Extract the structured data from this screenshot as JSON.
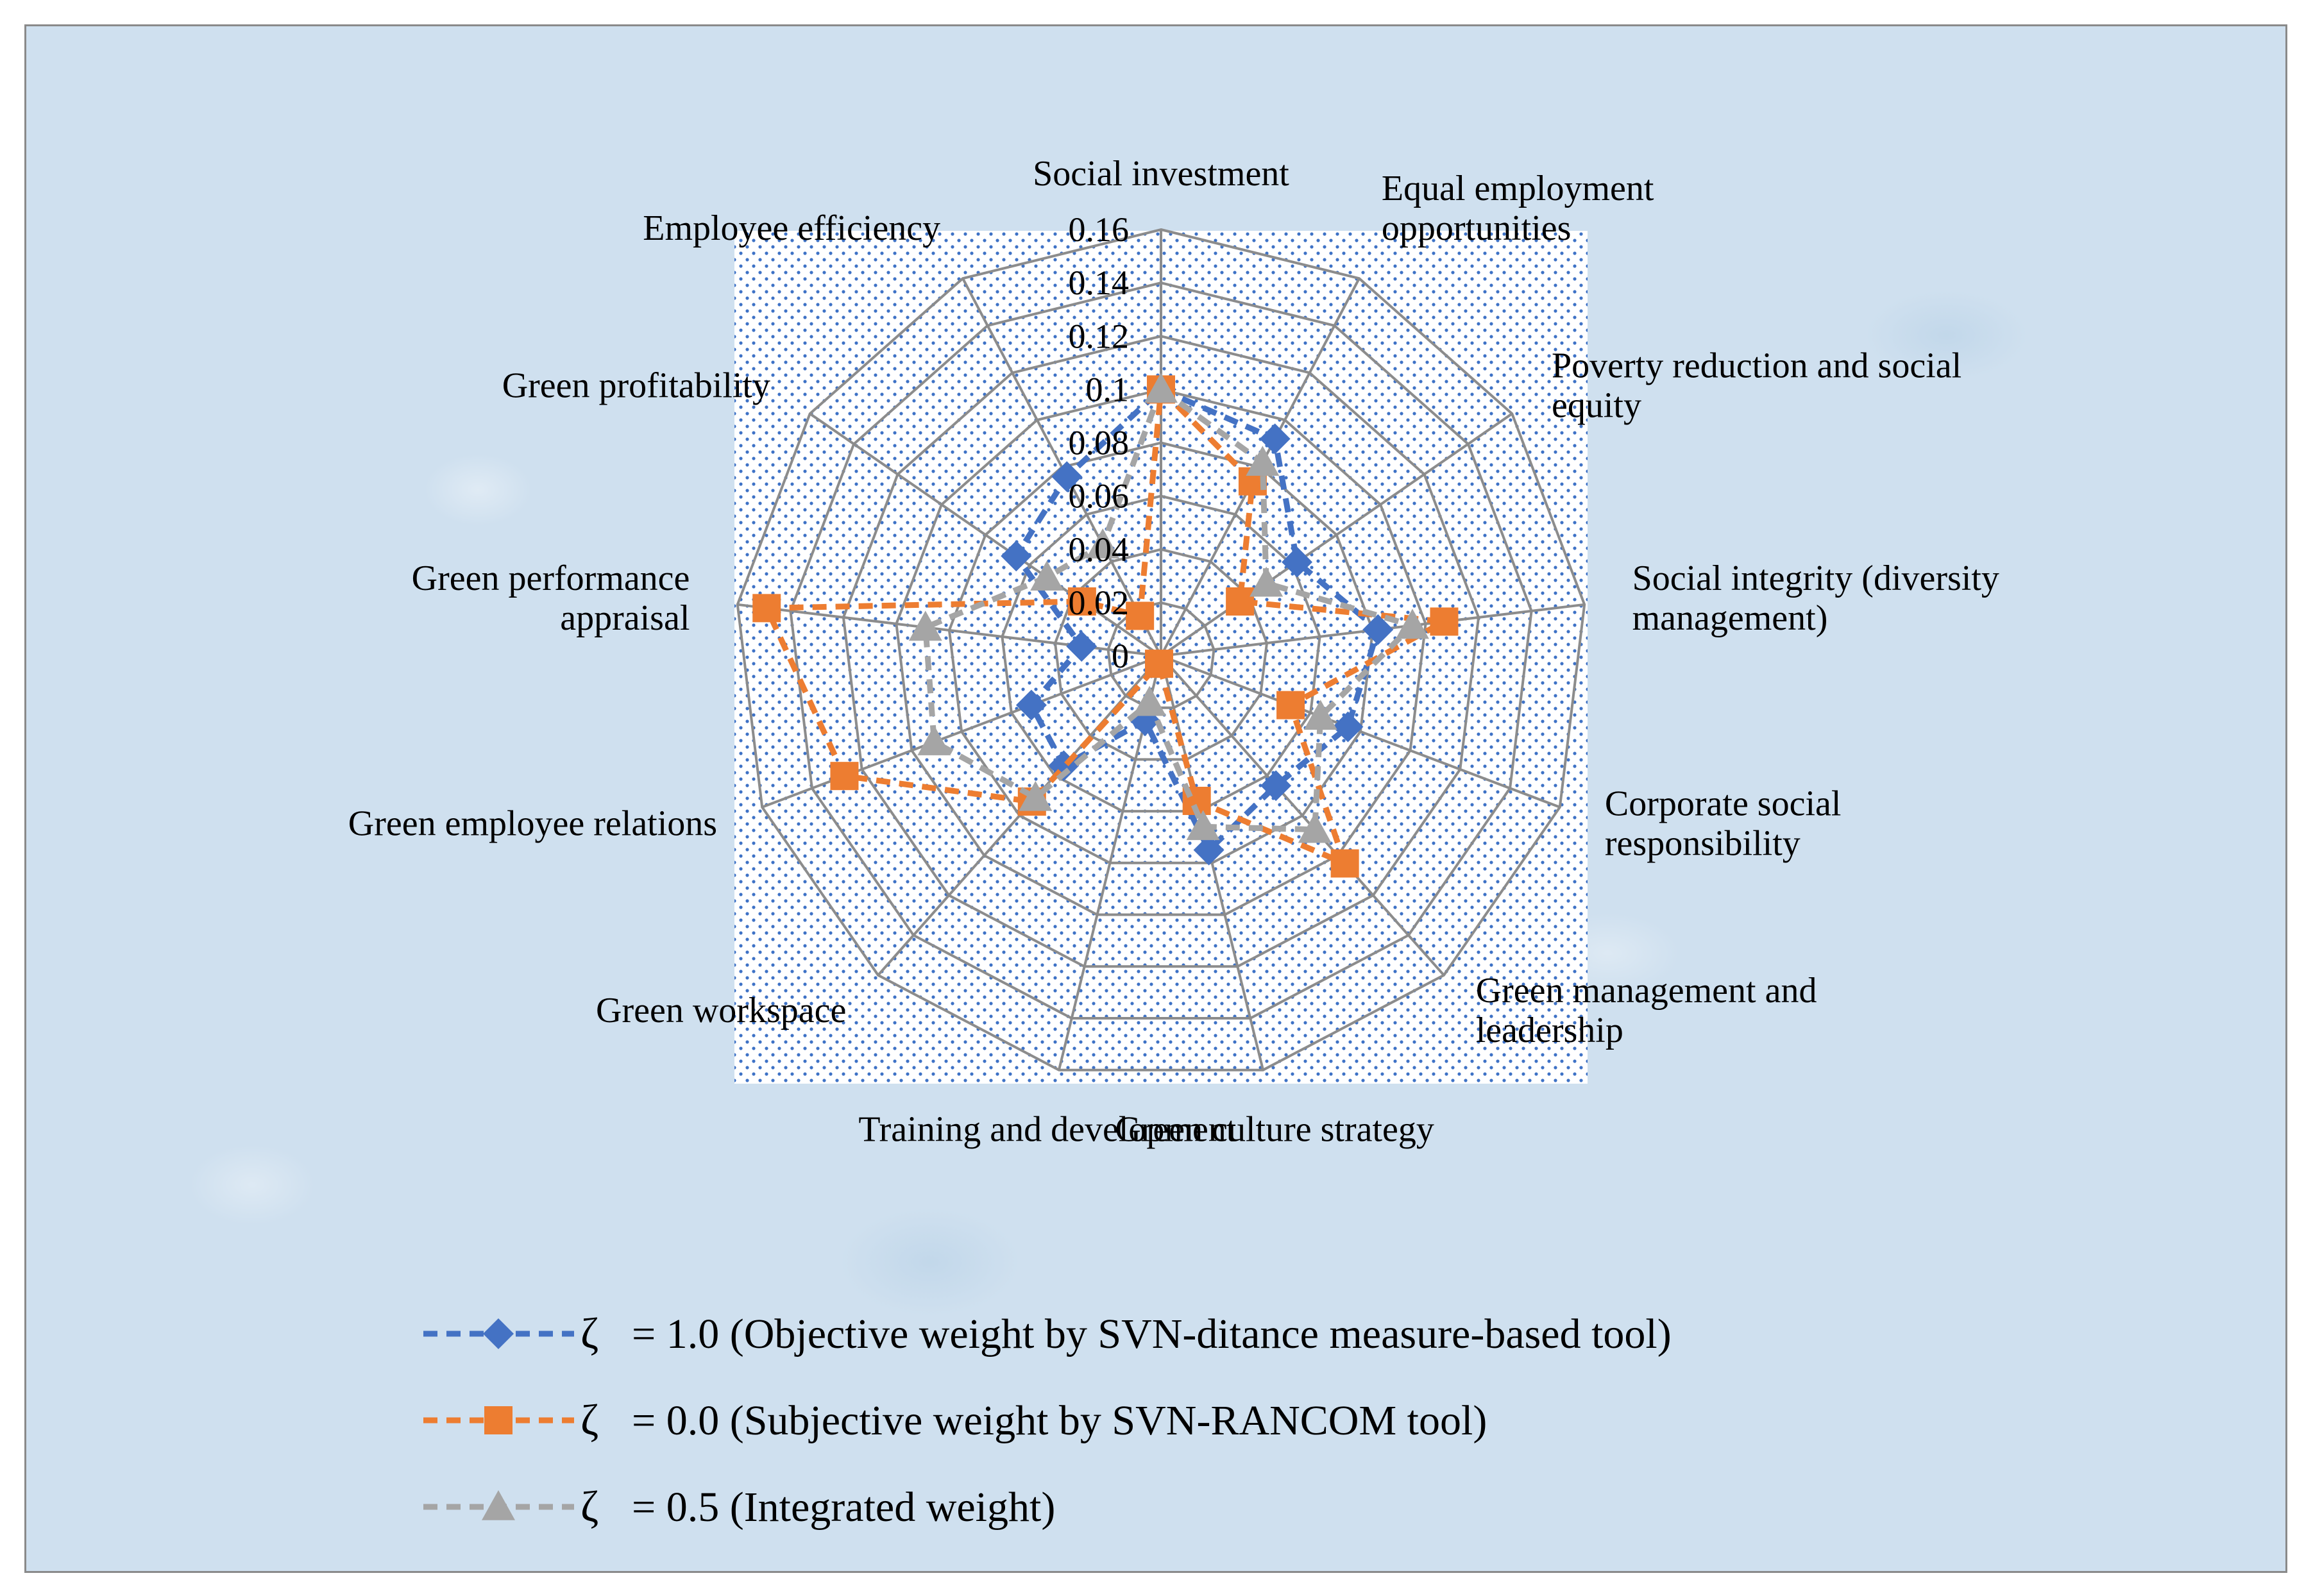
{
  "chart_data": {
    "type": "radar",
    "categories": [
      "Social investment",
      "Equal employment opportunities",
      "Poverty reduction and social equity",
      "Social integrity (diversity management)",
      "Corporate social responsibility",
      "Green management and leadership",
      "Green culture strategy",
      "Training and development",
      "Green workspace",
      "Green employee relations",
      "Green performance appraisal",
      "Green profitability",
      "Employee efficiency"
    ],
    "category_lines": [
      [
        "Social investment"
      ],
      [
        "Equal employment",
        "opportunities"
      ],
      [
        "Poverty reduction and social",
        "equity"
      ],
      [
        "Social integrity (diversity",
        "management)"
      ],
      [
        "Corporate social",
        "responsibility"
      ],
      [
        "Green management and",
        "leadership"
      ],
      [
        "Green culture strategy"
      ],
      [
        "Training and development"
      ],
      [
        "Green workspace"
      ],
      [
        "Green employee relations"
      ],
      [
        "Green performance",
        "appraisal"
      ],
      [
        "Green profitability"
      ],
      [
        "Employee efficiency"
      ]
    ],
    "r_ticks": [
      "0",
      "0.02",
      "0.04",
      "0.06",
      "0.08",
      "0.1",
      "0.12",
      "0.14",
      "0.16"
    ],
    "rlim": [
      0,
      0.16
    ],
    "legend_position": "bottom",
    "series": [
      {
        "name": "= 1.0 (Objective weight by SVN-ditance measure-based tool)",
        "symbol": "ζ",
        "color": "#4472C4",
        "marker": "diamond",
        "values": [
          0.1,
          0.092,
          0.062,
          0.082,
          0.075,
          0.065,
          0.075,
          0.025,
          0.055,
          0.052,
          0.03,
          0.066,
          0.076
        ]
      },
      {
        "name": "= 0.0 (Subjective weight by SVN-RANCOM tool)",
        "symbol": "ζ",
        "color": "#ED7D31",
        "marker": "square",
        "values": [
          0.1,
          0.074,
          0.036,
          0.107,
          0.052,
          0.104,
          0.056,
          0.003,
          0.073,
          0.127,
          0.149,
          0.036,
          0.017
        ]
      },
      {
        "name": "= 0.5 (Integrated weight)",
        "symbol": "ζ",
        "color": "#A5A5A5",
        "marker": "triangle",
        "values": [
          0.1,
          0.082,
          0.048,
          0.095,
          0.064,
          0.087,
          0.066,
          0.018,
          0.071,
          0.091,
          0.089,
          0.052,
          0.047
        ]
      }
    ]
  }
}
